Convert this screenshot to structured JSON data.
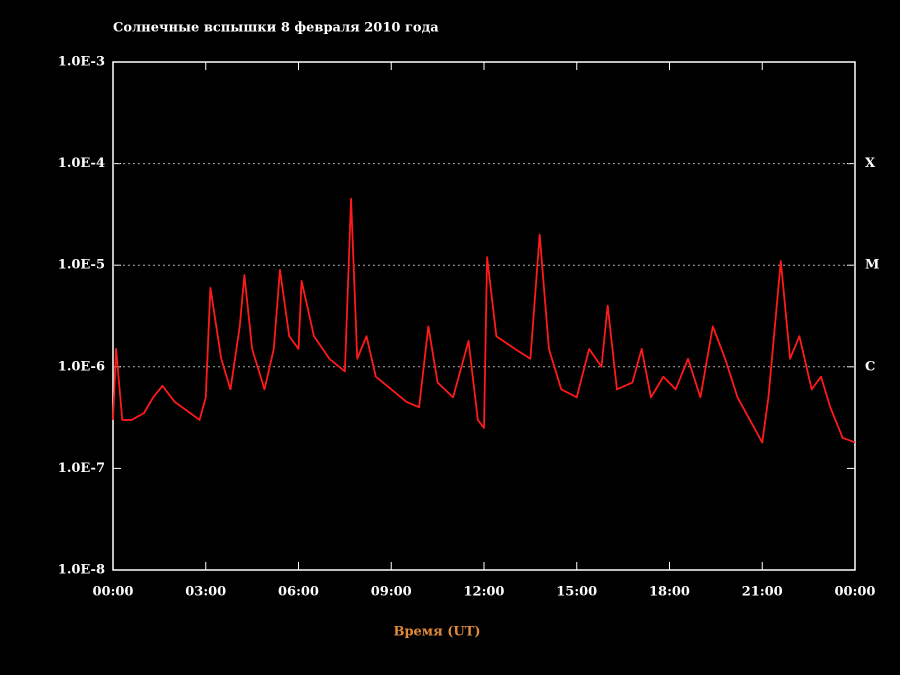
{
  "chart_data": {
    "type": "line",
    "title": "Солнечные вспышки 8 февраля 2010 года",
    "x_label": "Время (UT)",
    "color": "#ff1a1a",
    "ylog": true,
    "grid": true,
    "xlim": [
      0,
      24
    ],
    "xticks": [
      {
        "value": 0,
        "label": "00:00"
      },
      {
        "value": 3,
        "label": "03:00"
      },
      {
        "value": 6,
        "label": "06:00"
      },
      {
        "value": 9,
        "label": "09:00"
      },
      {
        "value": 12,
        "label": "12:00"
      },
      {
        "value": 15,
        "label": "15:00"
      },
      {
        "value": 18,
        "label": "18:00"
      },
      {
        "value": 21,
        "label": "21:00"
      },
      {
        "value": 24,
        "label": "00:00"
      }
    ],
    "ylim": [
      1e-08,
      0.001
    ],
    "yticks": [
      {
        "value": 1e-08,
        "label": "1.0E-8"
      },
      {
        "value": 1e-07,
        "label": "1.0E-7"
      },
      {
        "value": 1e-06,
        "label": "1.0E-6"
      },
      {
        "value": 1e-05,
        "label": "1.0E-5"
      },
      {
        "value": 0.0001,
        "label": "1.0E-4"
      },
      {
        "value": 0.001,
        "label": "1.0E-3"
      }
    ],
    "y2lim": [
      1e-08,
      0.001
    ],
    "y2ticks": [
      {
        "value": 1e-06,
        "label": "C"
      },
      {
        "value": 1e-05,
        "label": "M"
      },
      {
        "value": 0.0001,
        "label": "X"
      }
    ],
    "x": [
      0.0,
      0.1,
      0.3,
      0.6,
      1.0,
      1.3,
      1.6,
      2.0,
      2.5,
      2.8,
      3.0,
      3.15,
      3.5,
      3.8,
      4.1,
      4.25,
      4.5,
      4.9,
      5.2,
      5.4,
      5.7,
      6.0,
      6.1,
      6.5,
      7.0,
      7.5,
      7.7,
      7.9,
      8.2,
      8.5,
      9.0,
      9.5,
      9.9,
      10.2,
      10.5,
      11.0,
      11.5,
      11.8,
      12.0,
      12.1,
      12.4,
      13.0,
      13.5,
      13.8,
      14.1,
      14.5,
      15.0,
      15.4,
      15.8,
      16.0,
      16.3,
      16.8,
      17.1,
      17.4,
      17.8,
      18.2,
      18.6,
      19.0,
      19.4,
      19.8,
      20.2,
      20.6,
      21.0,
      21.2,
      21.6,
      21.9,
      22.2,
      22.6,
      22.9,
      23.2,
      23.6,
      24.0
    ],
    "values": [
      3e-07,
      1.5e-06,
      3e-07,
      3e-07,
      3.5e-07,
      5e-07,
      6.5e-07,
      4.5e-07,
      3.5e-07,
      3e-07,
      5e-07,
      6e-06,
      1.2e-06,
      6e-07,
      2.5e-06,
      8e-06,
      1.5e-06,
      6e-07,
      1.5e-06,
      9e-06,
      2e-06,
      1.5e-06,
      7e-06,
      2e-06,
      1.2e-06,
      9e-07,
      4.5e-05,
      1.2e-06,
      2e-06,
      8e-07,
      6e-07,
      4.5e-07,
      4e-07,
      2.5e-06,
      7e-07,
      5e-07,
      1.8e-06,
      3e-07,
      2.5e-07,
      1.2e-05,
      2e-06,
      1.5e-06,
      1.2e-06,
      2e-05,
      1.5e-06,
      6e-07,
      5e-07,
      1.5e-06,
      1e-06,
      4e-06,
      6e-07,
      7e-07,
      1.5e-06,
      5e-07,
      8e-07,
      6e-07,
      1.2e-06,
      5e-07,
      2.5e-06,
      1.2e-06,
      5e-07,
      3e-07,
      1.8e-07,
      5e-07,
      1.1e-05,
      1.2e-06,
      2e-06,
      6e-07,
      8e-07,
      4e-07,
      2e-07,
      1.8e-07
    ]
  }
}
